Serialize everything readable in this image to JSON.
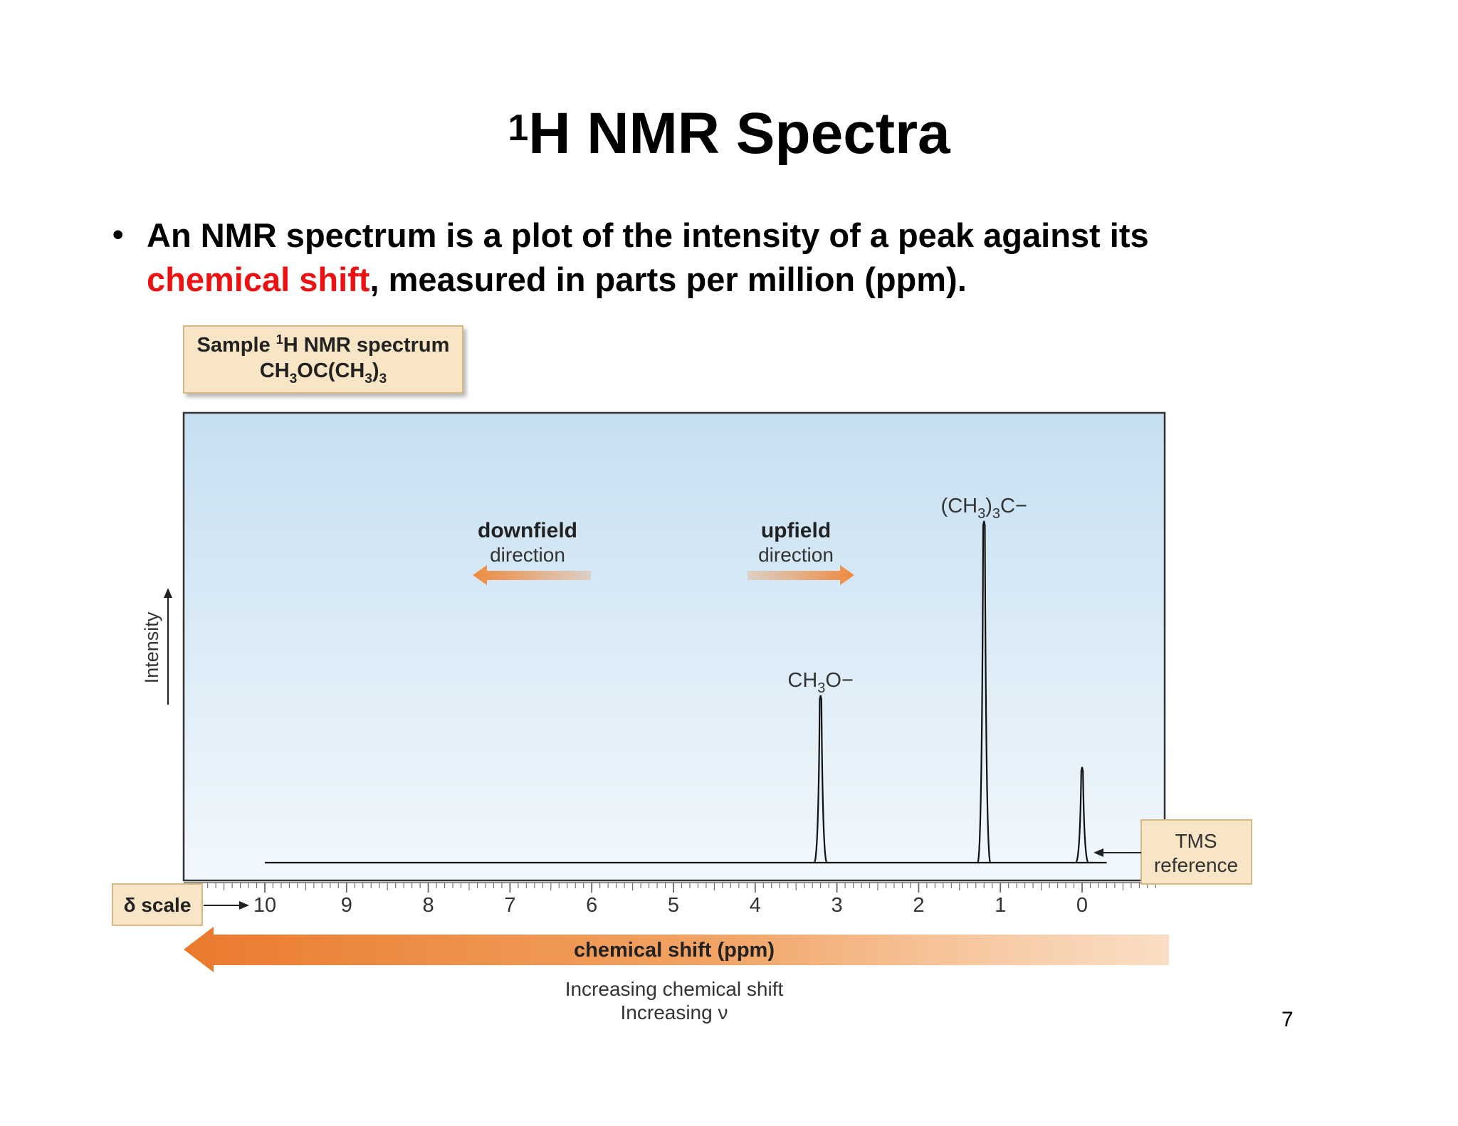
{
  "slide": {
    "title_sup": "1",
    "title_main": "H NMR Spectra",
    "bullet_part1": "An NMR spectrum is a plot of the intensity of a peak against its",
    "bullet_highlight": "chemical shift",
    "bullet_part2": ", measured in parts per million (ppm).",
    "highlight_color": "#ee1111",
    "page_number": "7"
  },
  "figure": {
    "sample_box": {
      "line1_pre": "Sample ",
      "line1_sup": "1",
      "line1_post": "H NMR spectrum",
      "line2_a": "CH",
      "line2_sub1": "3",
      "line2_b": "OC(CH",
      "line2_sub2": "3",
      "line2_c": ")",
      "line2_sub3": "3"
    },
    "downfield": {
      "bold": "downfield",
      "sub": "direction"
    },
    "upfield": {
      "bold": "upfield",
      "sub": "direction"
    },
    "tms_box": {
      "line1": "TMS",
      "line2": "reference"
    },
    "delta_scale": "δ scale",
    "axis_banner": "chemical shift (ppm)",
    "increasing_shift": "Increasing chemical shift",
    "increasing_nu": "Increasing ν",
    "intensity_label": "Intensity",
    "plot_bg_top": "#c6dff1",
    "plot_bg_bottom": "#f2f8fd",
    "arrow_color": "#ee8a3f"
  },
  "chart_data": {
    "type": "line",
    "xlabel": "chemical shift (ppm)",
    "ylabel": "Intensity",
    "xlim": [
      10.8,
      -1.0
    ],
    "xaxis_reversed": true,
    "x_ticks": [
      "10",
      "9",
      "8",
      "7",
      "6",
      "5",
      "4",
      "3",
      "2",
      "1",
      "0"
    ],
    "baseline_from": 10.0,
    "peaks": [
      {
        "shift": 3.2,
        "relative_height": 0.49,
        "label": "CH3O−",
        "label_main": "CH",
        "label_sub": "3",
        "label_post": "O−"
      },
      {
        "shift": 1.2,
        "relative_height": 1.0,
        "label": "(CH3)3C−",
        "label_main": "(CH",
        "label_sub": "3",
        "label_post": ")3C−"
      },
      {
        "shift": 0.0,
        "relative_height": 0.28,
        "label": "TMS reference"
      }
    ]
  }
}
